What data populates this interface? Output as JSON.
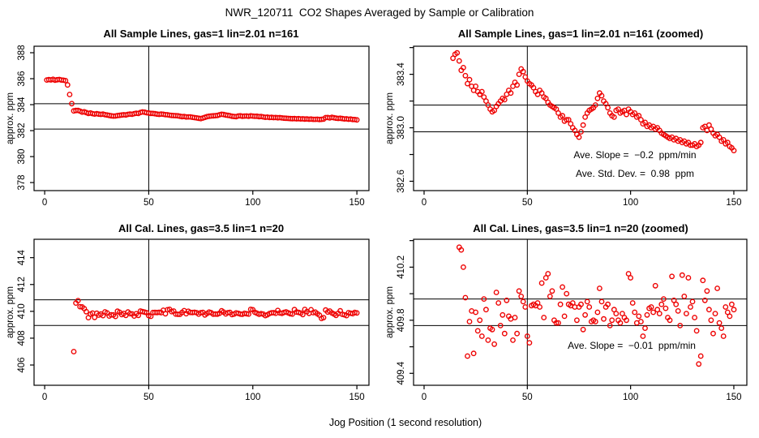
{
  "main_title": "NWR_120711  CO2 Shapes Averaged by Sample or Calibration",
  "xlabel": "Jog Position (1 second resolution)",
  "ylabel": "approx. ppm",
  "colors": {
    "point": "#ee0000",
    "axis": "#000000",
    "background": "#ffffff"
  },
  "chart_data": [
    {
      "id": "p1",
      "type": "scatter",
      "title": "All Sample Lines, gas=1 lin=2.01 n=161",
      "series": "sample",
      "xlim": [
        -5.1,
        155.8
      ],
      "ylim": [
        377.38,
        388.5
      ],
      "xticks": [
        0,
        50,
        100,
        150
      ],
      "xtick_labels": [
        "0",
        "50",
        "100",
        "150"
      ],
      "yticks": [
        378,
        380,
        382,
        384,
        386,
        388
      ],
      "ytick_labels": [
        "378",
        "380",
        "382",
        "384",
        "386",
        "388"
      ],
      "hlines": [
        384.07,
        382.12
      ],
      "vlines": [
        50
      ],
      "annotations": []
    },
    {
      "id": "p2",
      "type": "scatter",
      "title": "All Sample Lines, gas=1 lin=2.01 n=161 (zoomed)",
      "series": "sample",
      "xlim": [
        -5.1,
        156.3
      ],
      "ylim": [
        382.53,
        383.61
      ],
      "xticks": [
        0,
        50,
        100,
        150
      ],
      "xtick_labels": [
        "0",
        "50",
        "100",
        "150"
      ],
      "yticks": [
        382.6,
        382.8,
        383.0,
        383.2,
        383.4,
        383.6
      ],
      "ytick_labels": [
        "382.6",
        "",
        "383.0",
        "",
        "383.4",
        ""
      ],
      "hlines": [
        383.17,
        382.97
      ],
      "vlines": [
        50
      ],
      "annotations": [
        {
          "text": "Ave. Slope =  −0.2  ppm/min",
          "x": 102,
          "y": 382.8
        },
        {
          "text": "Ave. Std. Dev. =  0.98  ppm",
          "x": 102,
          "y": 382.66
        }
      ]
    },
    {
      "id": "p3",
      "type": "scatter",
      "title": "All Cal. Lines, gas=3.5 lin=1 n=20",
      "series": "cal",
      "xlim": [
        -5.1,
        155.8
      ],
      "ylim": [
        404.49,
        415.37
      ],
      "xticks": [
        0,
        50,
        100,
        150
      ],
      "xtick_labels": [
        "0",
        "50",
        "100",
        "150"
      ],
      "yticks": [
        406,
        408,
        410,
        412,
        414
      ],
      "ytick_labels": [
        "406",
        "408",
        "410",
        "412",
        "414"
      ],
      "hlines": [
        410.86,
        408.95
      ],
      "vlines": [
        50
      ],
      "annotations": []
    },
    {
      "id": "p4",
      "type": "scatter",
      "title": "All Cal. Lines, gas=3.5 lin=1 n=20 (zoomed)",
      "series": "cal",
      "xlim": [
        -5.1,
        156.3
      ],
      "ylim": [
        409.31,
        410.41
      ],
      "xticks": [
        0,
        50,
        100,
        150
      ],
      "xtick_labels": [
        "0",
        "50",
        "100",
        "150"
      ],
      "yticks": [
        409.4,
        409.6,
        409.8,
        410.0,
        410.2,
        410.4
      ],
      "ytick_labels": [
        "409.4",
        "",
        "409.8",
        "",
        "410.2",
        ""
      ],
      "hlines": [
        409.96,
        409.76
      ],
      "vlines": [
        50
      ],
      "annotations": [
        {
          "text": "Ave. Slope =  −0.01  ppm/min",
          "x": 100,
          "y": 409.62
        }
      ]
    }
  ],
  "series": {
    "sample": [
      [
        1,
        385.9
      ],
      [
        2,
        385.93
      ],
      [
        3,
        385.91
      ],
      [
        4,
        385.95
      ],
      [
        5,
        385.89
      ],
      [
        6,
        385.92
      ],
      [
        7,
        385.94
      ],
      [
        8,
        385.9
      ],
      [
        9,
        385.88
      ],
      [
        10,
        385.85
      ],
      [
        11,
        385.52
      ],
      [
        12,
        384.78
      ],
      [
        13,
        384.08
      ],
      [
        14,
        383.52
      ],
      [
        15,
        383.55
      ],
      [
        16,
        383.56
      ],
      [
        17,
        383.5
      ],
      [
        18,
        383.43
      ],
      [
        19,
        383.45
      ],
      [
        20,
        383.39
      ],
      [
        21,
        383.33
      ],
      [
        22,
        383.36
      ],
      [
        23,
        383.31
      ],
      [
        24,
        383.28
      ],
      [
        25,
        383.31
      ],
      [
        26,
        383.27
      ],
      [
        27,
        383.25
      ],
      [
        28,
        383.27
      ],
      [
        29,
        383.23
      ],
      [
        30,
        383.2
      ],
      [
        31,
        383.17
      ],
      [
        32,
        383.14
      ],
      [
        33,
        383.12
      ],
      [
        34,
        383.13
      ],
      [
        35,
        383.16
      ],
      [
        36,
        383.18
      ],
      [
        37,
        383.2
      ],
      [
        38,
        383.22
      ],
      [
        39,
        383.21
      ],
      [
        40,
        383.25
      ],
      [
        41,
        383.28
      ],
      [
        42,
        383.26
      ],
      [
        43,
        383.31
      ],
      [
        44,
        383.34
      ],
      [
        45,
        383.32
      ],
      [
        46,
        383.4
      ],
      [
        47,
        383.44
      ],
      [
        48,
        383.42
      ],
      [
        49,
        383.38
      ],
      [
        50,
        383.35
      ],
      [
        51,
        383.33
      ],
      [
        52,
        383.32
      ],
      [
        53,
        383.3
      ],
      [
        54,
        383.27
      ],
      [
        55,
        383.25
      ],
      [
        56,
        383.28
      ],
      [
        57,
        383.26
      ],
      [
        58,
        383.23
      ],
      [
        59,
        383.22
      ],
      [
        60,
        383.19
      ],
      [
        61,
        383.17
      ],
      [
        62,
        383.16
      ],
      [
        63,
        383.15
      ],
      [
        64,
        383.14
      ],
      [
        65,
        383.11
      ],
      [
        66,
        383.08
      ],
      [
        67,
        383.09
      ],
      [
        68,
        383.05
      ],
      [
        69,
        383.06
      ],
      [
        70,
        383.06
      ],
      [
        71,
        383.03
      ],
      [
        72,
        383.0
      ],
      [
        73,
        382.98
      ],
      [
        74,
        382.95
      ],
      [
        75,
        382.93
      ],
      [
        76,
        382.97
      ],
      [
        77,
        383.02
      ],
      [
        78,
        383.08
      ],
      [
        79,
        383.11
      ],
      [
        80,
        383.13
      ],
      [
        81,
        383.14
      ],
      [
        82,
        383.15
      ],
      [
        83,
        383.17
      ],
      [
        84,
        383.22
      ],
      [
        85,
        383.26
      ],
      [
        86,
        383.24
      ],
      [
        87,
        383.2
      ],
      [
        88,
        383.18
      ],
      [
        89,
        383.15
      ],
      [
        90,
        383.11
      ],
      [
        91,
        383.09
      ],
      [
        92,
        383.08
      ],
      [
        93,
        383.13
      ],
      [
        94,
        383.14
      ],
      [
        95,
        383.11
      ],
      [
        96,
        383.12
      ],
      [
        97,
        383.13
      ],
      [
        98,
        383.1
      ],
      [
        99,
        383.14
      ],
      [
        100,
        383.12
      ],
      [
        101,
        383.1
      ],
      [
        102,
        383.11
      ],
      [
        103,
        383.08
      ],
      [
        104,
        383.09
      ],
      [
        105,
        383.06
      ],
      [
        106,
        383.03
      ],
      [
        107,
        383.04
      ],
      [
        108,
        383.01
      ],
      [
        109,
        383.02
      ],
      [
        110,
        383.0
      ],
      [
        111,
        383.01
      ],
      [
        112,
        382.99
      ],
      [
        113,
        383.0
      ],
      [
        114,
        382.98
      ],
      [
        115,
        382.96
      ],
      [
        116,
        382.95
      ],
      [
        117,
        382.94
      ],
      [
        118,
        382.93
      ],
      [
        119,
        382.92
      ],
      [
        120,
        382.93
      ],
      [
        121,
        382.91
      ],
      [
        122,
        382.92
      ],
      [
        123,
        382.9
      ],
      [
        124,
        382.91
      ],
      [
        125,
        382.89
      ],
      [
        126,
        382.9
      ],
      [
        127,
        382.88
      ],
      [
        128,
        382.89
      ],
      [
        129,
        382.87
      ],
      [
        130,
        382.87
      ],
      [
        131,
        382.88
      ],
      [
        132,
        382.86
      ],
      [
        133,
        382.87
      ],
      [
        134,
        382.89
      ],
      [
        135,
        383.0
      ],
      [
        136,
        383.01
      ],
      [
        137,
        382.98
      ],
      [
        138,
        383.02
      ],
      [
        139,
        382.99
      ],
      [
        140,
        382.96
      ],
      [
        141,
        382.94
      ],
      [
        142,
        382.95
      ],
      [
        143,
        382.93
      ],
      [
        144,
        382.9
      ],
      [
        145,
        382.91
      ],
      [
        146,
        382.88
      ],
      [
        147,
        382.89
      ],
      [
        148,
        382.86
      ],
      [
        149,
        382.85
      ],
      [
        150,
        382.83
      ]
    ],
    "cal": [
      [
        14,
        407.0
      ],
      [
        15,
        410.62
      ],
      [
        16,
        410.8
      ],
      [
        17,
        410.35
      ],
      [
        18,
        410.33
      ],
      [
        19,
        410.2
      ],
      [
        20,
        409.97
      ],
      [
        21,
        409.53
      ],
      [
        22,
        409.79
      ],
      [
        23,
        409.87
      ],
      [
        24,
        409.55
      ],
      [
        25,
        409.86
      ],
      [
        26,
        409.72
      ],
      [
        27,
        409.8
      ],
      [
        28,
        409.68
      ],
      [
        29,
        409.96
      ],
      [
        30,
        409.88
      ],
      [
        31,
        409.65
      ],
      [
        32,
        409.74
      ],
      [
        33,
        409.73
      ],
      [
        34,
        409.62
      ],
      [
        35,
        410.01
      ],
      [
        36,
        409.93
      ],
      [
        37,
        409.76
      ],
      [
        38,
        409.84
      ],
      [
        39,
        409.7
      ],
      [
        40,
        409.95
      ],
      [
        41,
        409.83
      ],
      [
        42,
        409.81
      ],
      [
        43,
        409.65
      ],
      [
        44,
        409.82
      ],
      [
        45,
        409.7
      ],
      [
        46,
        410.02
      ],
      [
        47,
        409.98
      ],
      [
        48,
        409.94
      ],
      [
        49,
        409.9
      ],
      [
        50,
        409.68
      ],
      [
        51,
        409.63
      ],
      [
        52,
        409.91
      ],
      [
        53,
        409.92
      ],
      [
        54,
        409.91
      ],
      [
        55,
        409.93
      ],
      [
        56,
        409.9
      ],
      [
        57,
        410.08
      ],
      [
        58,
        409.82
      ],
      [
        59,
        410.12
      ],
      [
        60,
        410.15
      ],
      [
        61,
        409.98
      ],
      [
        62,
        410.02
      ],
      [
        63,
        409.8
      ],
      [
        64,
        409.78
      ],
      [
        65,
        409.78
      ],
      [
        66,
        409.92
      ],
      [
        67,
        410.05
      ],
      [
        68,
        409.83
      ],
      [
        69,
        410.0
      ],
      [
        70,
        409.92
      ],
      [
        71,
        409.91
      ],
      [
        72,
        409.93
      ],
      [
        73,
        409.9
      ],
      [
        74,
        409.8
      ],
      [
        75,
        409.9
      ],
      [
        76,
        409.92
      ],
      [
        77,
        409.73
      ],
      [
        78,
        409.84
      ],
      [
        79,
        409.94
      ],
      [
        80,
        409.9
      ],
      [
        81,
        409.79
      ],
      [
        82,
        409.8
      ],
      [
        83,
        409.79
      ],
      [
        84,
        409.86
      ],
      [
        85,
        410.04
      ],
      [
        86,
        409.94
      ],
      [
        87,
        409.81
      ],
      [
        88,
        409.9
      ],
      [
        89,
        409.92
      ],
      [
        90,
        409.76
      ],
      [
        91,
        409.8
      ],
      [
        92,
        409.88
      ],
      [
        93,
        409.85
      ],
      [
        94,
        409.8
      ],
      [
        95,
        409.78
      ],
      [
        96,
        409.85
      ],
      [
        97,
        409.82
      ],
      [
        98,
        409.8
      ],
      [
        99,
        410.15
      ],
      [
        100,
        410.12
      ],
      [
        101,
        409.93
      ],
      [
        102,
        409.86
      ],
      [
        103,
        409.78
      ],
      [
        104,
        409.83
      ],
      [
        105,
        409.79
      ],
      [
        106,
        409.68
      ],
      [
        107,
        409.74
      ],
      [
        108,
        409.84
      ],
      [
        109,
        409.89
      ],
      [
        110,
        409.9
      ],
      [
        111,
        409.86
      ],
      [
        112,
        410.06
      ],
      [
        113,
        409.88
      ],
      [
        114,
        409.85
      ],
      [
        115,
        409.92
      ],
      [
        116,
        409.96
      ],
      [
        117,
        409.89
      ],
      [
        118,
        409.82
      ],
      [
        119,
        409.8
      ],
      [
        120,
        410.13
      ],
      [
        121,
        409.95
      ],
      [
        122,
        409.92
      ],
      [
        123,
        409.87
      ],
      [
        124,
        409.76
      ],
      [
        125,
        410.14
      ],
      [
        126,
        409.98
      ],
      [
        127,
        409.85
      ],
      [
        128,
        410.12
      ],
      [
        129,
        409.9
      ],
      [
        130,
        409.94
      ],
      [
        131,
        409.82
      ],
      [
        132,
        409.72
      ],
      [
        133,
        409.47
      ],
      [
        134,
        409.53
      ],
      [
        135,
        410.1
      ],
      [
        136,
        409.95
      ],
      [
        137,
        410.02
      ],
      [
        138,
        409.88
      ],
      [
        139,
        409.8
      ],
      [
        140,
        409.7
      ],
      [
        141,
        409.85
      ],
      [
        142,
        410.04
      ],
      [
        143,
        409.78
      ],
      [
        144,
        409.74
      ],
      [
        145,
        409.68
      ],
      [
        146,
        409.9
      ],
      [
        147,
        409.86
      ],
      [
        148,
        409.83
      ],
      [
        149,
        409.92
      ],
      [
        150,
        409.88
      ]
    ]
  }
}
